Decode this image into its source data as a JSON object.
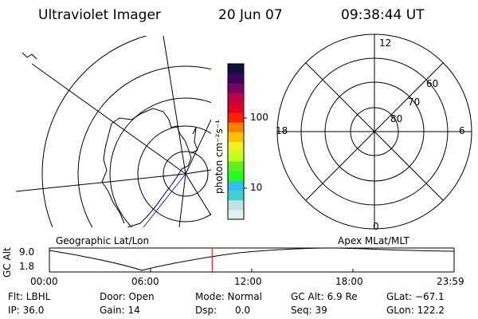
{
  "header": {
    "title": "Ultraviolet Imager",
    "date": "20 Jun 07",
    "time": "09:38:44 UT"
  },
  "colorbar": {
    "label": "photon cm⁻²s⁻¹",
    "ticks": [
      "100",
      "10"
    ],
    "colors": [
      "#e0f0f0",
      "#c0e0e4",
      "#40d0d0",
      "#30c0f0",
      "#20ff20",
      "#60f020",
      "#c0ff20",
      "#f0f020",
      "#ffc000",
      "#ff8000",
      "#ff2000",
      "#e00020",
      "#c00040",
      "#800060",
      "#400060",
      "#101040"
    ]
  },
  "left_map": {
    "title": "Geographic Lat/Lon"
  },
  "right_map": {
    "title": "Apex MLat/MLT",
    "mlt_labels": {
      "top": "12",
      "bottom": "0",
      "left": "18",
      "right": "6"
    },
    "lat_labels": [
      "60",
      "70",
      "80"
    ]
  },
  "altitude_plot": {
    "ylabel": "GC Alt",
    "yticks": [
      "9.0",
      "1.8"
    ],
    "xticks": [
      "00:00",
      "06:00",
      "12:00",
      "18:00",
      "23:59"
    ],
    "current_marker_hours": 9.65
  },
  "status": {
    "row1": {
      "flt": "Flt: LBHL",
      "door": "Door: Open",
      "mode": "Mode: Normal",
      "gcalt": "GC Alt: 6.9 Re",
      "glat": "GLat: −67.1"
    },
    "row2": {
      "ip": "IP: 36.0",
      "gain": "Gain: 14",
      "dsp": "Dsp:      0.0",
      "seq": "Seq: 39",
      "glon": "GLon: 122.2"
    }
  }
}
